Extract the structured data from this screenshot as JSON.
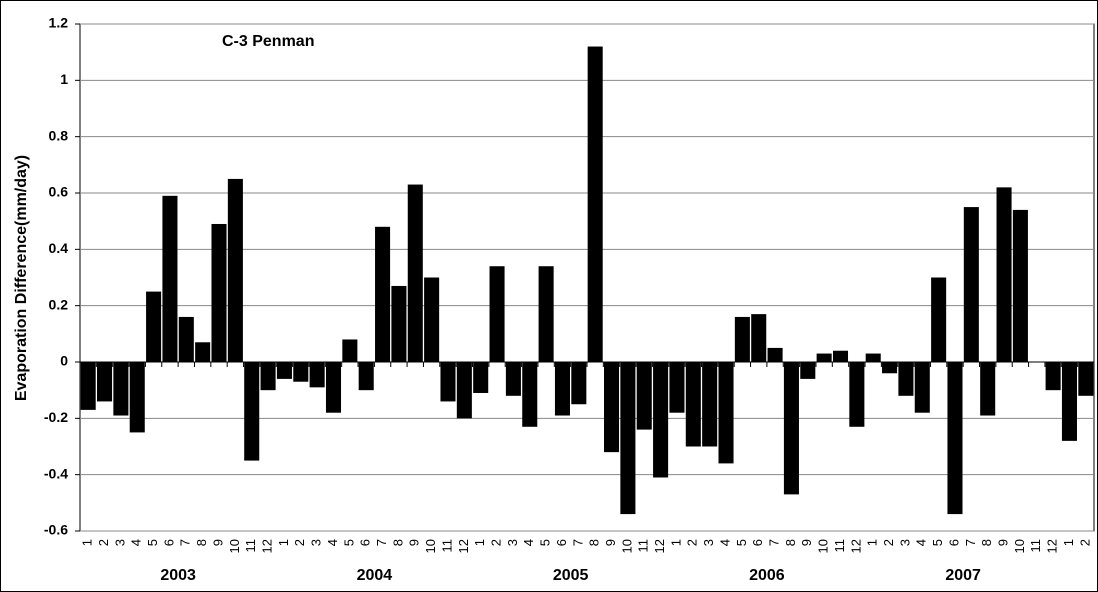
{
  "chart_data": {
    "type": "bar",
    "title": "C-3 Penman",
    "y_label": "Evaporation Difference(mm/day)",
    "categories": [
      "1",
      "2",
      "3",
      "4",
      "5",
      "6",
      "7",
      "8",
      "9",
      "10",
      "11",
      "12",
      "1",
      "2",
      "3",
      "4",
      "5",
      "6",
      "7",
      "8",
      "9",
      "10",
      "11",
      "12",
      "1",
      "2",
      "3",
      "4",
      "5",
      "6",
      "7",
      "8",
      "9",
      "10",
      "11",
      "12",
      "1",
      "2",
      "3",
      "4",
      "5",
      "6",
      "7",
      "8",
      "9",
      "10",
      "11",
      "12",
      "1",
      "2",
      "3",
      "4",
      "5",
      "6",
      "7",
      "8",
      "9",
      "10",
      "11",
      "12",
      "1",
      "2"
    ],
    "year_labels": [
      "2003",
      "2004",
      "2005",
      "2006",
      "2007"
    ],
    "values": [
      -0.17,
      -0.14,
      -0.19,
      -0.25,
      0.25,
      0.59,
      0.16,
      0.07,
      0.49,
      0.65,
      -0.35,
      -0.1,
      -0.06,
      -0.07,
      -0.09,
      -0.18,
      0.08,
      -0.1,
      0.48,
      0.27,
      0.63,
      0.3,
      -0.14,
      -0.2,
      -0.11,
      0.34,
      -0.12,
      -0.23,
      0.34,
      -0.19,
      -0.15,
      1.12,
      -0.32,
      -0.54,
      -0.24,
      -0.41,
      -0.18,
      -0.3,
      -0.3,
      -0.36,
      0.16,
      0.17,
      0.05,
      -0.47,
      -0.06,
      0.03,
      0.04,
      -0.23,
      0.03,
      -0.04,
      -0.12,
      -0.18,
      0.3,
      -0.54,
      0.55,
      -0.19,
      0.62,
      0.54,
      0.0,
      -0.1,
      -0.28,
      -0.12
    ],
    "color": "#000000",
    "ylim": [
      -0.6,
      1.2
    ],
    "yticks": [
      -0.6,
      -0.4,
      -0.2,
      0,
      0.2,
      0.4,
      0.6,
      0.8,
      1,
      1.2
    ],
    "grid": true
  }
}
